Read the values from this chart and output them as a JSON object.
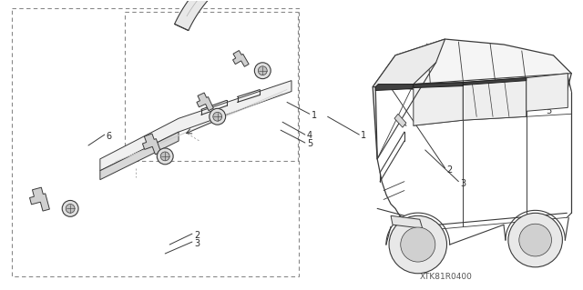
{
  "background_color": "#ffffff",
  "figure_width": 6.4,
  "figure_height": 3.19,
  "dpi": 100,
  "diagram_code": "XTK81R0400",
  "line_color": "#3a3a3a",
  "light_gray": "#c8c8c8",
  "mid_gray": "#a0a0a0",
  "dark_line": "#2a2a2a",
  "dash_color": "#888888"
}
